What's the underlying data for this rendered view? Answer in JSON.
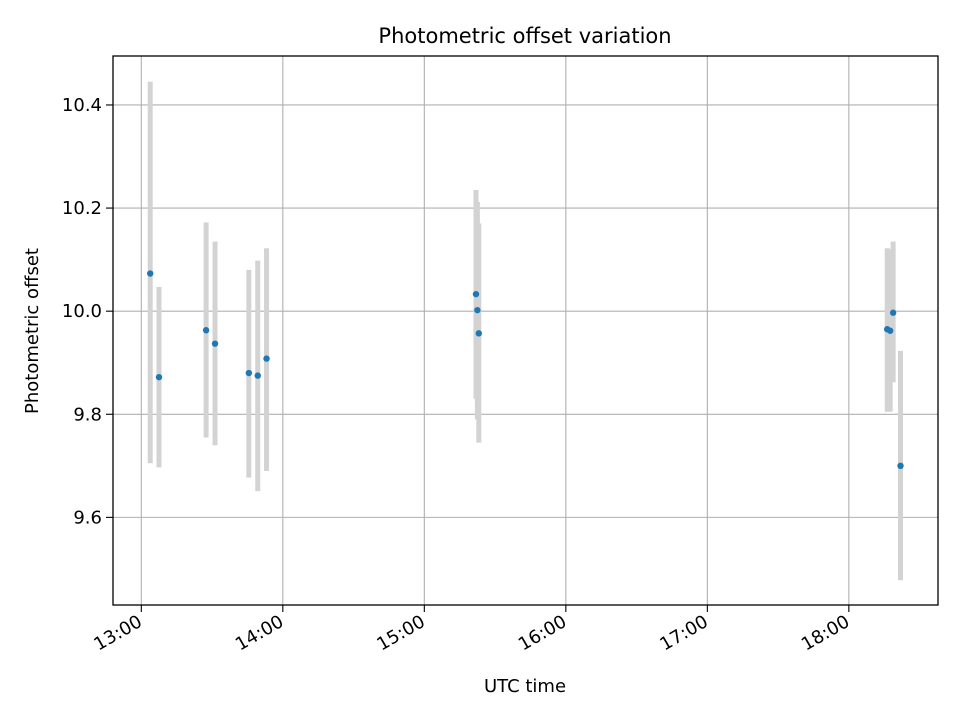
{
  "chart_data": {
    "type": "scatter",
    "title": "Photometric offset variation",
    "xlabel": "UTC time",
    "ylabel": "Photometric offset",
    "x_unit": "hours (UTC)",
    "xlim": [
      12.8,
      18.63
    ],
    "ylim": [
      9.43,
      10.495
    ],
    "x_ticks": [
      13,
      14,
      15,
      16,
      17,
      18
    ],
    "x_tick_labels": [
      "13:00",
      "14:00",
      "15:00",
      "16:00",
      "17:00",
      "18:00"
    ],
    "y_ticks": [
      9.6,
      9.8,
      10.0,
      10.2,
      10.4
    ],
    "y_tick_labels": [
      "9.6",
      "9.8",
      "10.0",
      "10.2",
      "10.4"
    ],
    "grid": true,
    "x_tick_rotation": "30 degrees",
    "marker_color": "#1f77b4",
    "errorbar_color": "#d3d3d3",
    "points": [
      {
        "x": 13.063,
        "y": 10.073,
        "err_low": 9.705,
        "err_high": 10.445
      },
      {
        "x": 13.125,
        "y": 9.872,
        "err_low": 9.697,
        "err_high": 10.047
      },
      {
        "x": 13.458,
        "y": 9.963,
        "err_low": 9.755,
        "err_high": 10.172
      },
      {
        "x": 13.521,
        "y": 9.937,
        "err_low": 9.74,
        "err_high": 10.135
      },
      {
        "x": 13.76,
        "y": 9.88,
        "err_low": 9.677,
        "err_high": 10.08
      },
      {
        "x": 13.823,
        "y": 9.875,
        "err_low": 9.651,
        "err_high": 10.098
      },
      {
        "x": 13.885,
        "y": 9.908,
        "err_low": 9.69,
        "err_high": 10.122
      },
      {
        "x": 15.365,
        "y": 10.033,
        "err_low": 9.83,
        "err_high": 10.235
      },
      {
        "x": 15.375,
        "y": 10.002,
        "err_low": 9.79,
        "err_high": 10.212
      },
      {
        "x": 15.385,
        "y": 9.957,
        "err_low": 9.745,
        "err_high": 10.17
      },
      {
        "x": 18.271,
        "y": 9.965,
        "err_low": 9.805,
        "err_high": 10.122
      },
      {
        "x": 18.292,
        "y": 9.962,
        "err_low": 9.805,
        "err_high": 10.12
      },
      {
        "x": 18.313,
        "y": 9.997,
        "err_low": 9.862,
        "err_high": 10.135
      },
      {
        "x": 18.365,
        "y": 9.7,
        "err_low": 9.478,
        "err_high": 9.923
      }
    ]
  }
}
